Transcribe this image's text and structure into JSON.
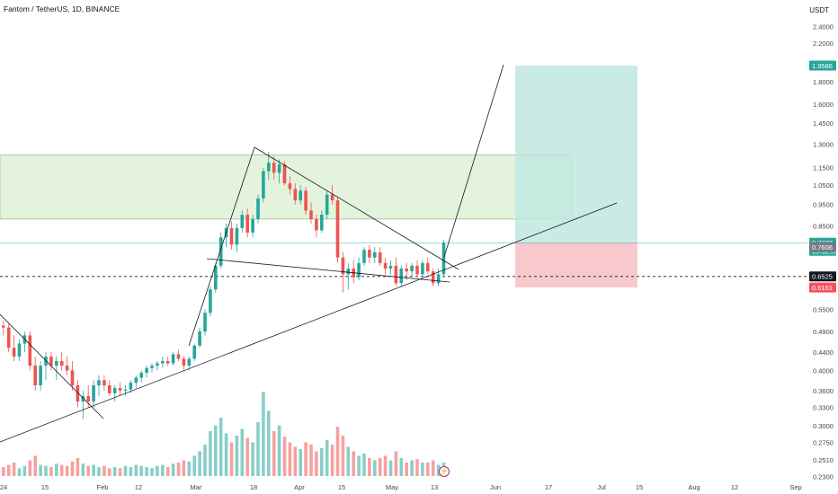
{
  "header": {
    "symbol_line": "Fantom / TetherUS, 1D, BINANCE",
    "currency": "USDT"
  },
  "colors": {
    "bull": "#26a69a",
    "bear": "#ef5350",
    "zone_fill": "#e3f3dc",
    "target_fill": "#bfe7df",
    "stop_fill": "#f8c9cc"
  },
  "chart_data": {
    "type": "candlestick",
    "log_scale": true,
    "price_axis_labels": [
      "2.4000",
      "2.2000",
      "1.8000",
      "1.6000",
      "1.4500",
      "1.3000",
      "1.1500",
      "1.0500",
      "0.9500",
      "0.8500",
      "0.5500",
      "0.4900",
      "0.4400",
      "0.4000",
      "0.3600",
      "0.3300",
      "0.3000",
      "0.2750",
      "0.2510",
      "0.2300"
    ],
    "price_axis_values": [
      2.4,
      2.2,
      1.8,
      1.6,
      1.45,
      1.3,
      1.15,
      1.05,
      0.95,
      0.85,
      0.55,
      0.49,
      0.44,
      0.4,
      0.36,
      0.33,
      0.3,
      0.275,
      0.251,
      0.23
    ],
    "time_axis_labels": [
      "24",
      "15",
      "Feb",
      "12",
      "Mar",
      "18",
      "Apr",
      "15",
      "May",
      "13",
      "Jun",
      "17",
      "Jul",
      "15",
      "Aug",
      "12",
      "Sep"
    ],
    "badges": [
      {
        "label": "1.9586",
        "value": 1.9586,
        "color": "#26a69a"
      },
      {
        "label": "0.7777",
        "sublabel": "19:52:59",
        "value": 0.7777,
        "color": "#26a69a"
      },
      {
        "label": "0.7606",
        "value": 0.7606,
        "color": "#787b86"
      },
      {
        "label": "0.6525",
        "value": 0.6525,
        "color": "#131722"
      },
      {
        "label": "0.6161",
        "value": 0.6161,
        "color": "#f7525f"
      }
    ],
    "current_price": 0.7777,
    "entry_price": 0.6525,
    "target_price": 1.9586,
    "stop_price": 0.6161,
    "resistance_zone": [
      0.88,
      1.23
    ],
    "candles": [
      [
        0.505,
        0.52,
        0.48,
        0.5
      ],
      [
        0.5,
        0.51,
        0.44,
        0.45
      ],
      [
        0.45,
        0.48,
        0.42,
        0.43
      ],
      [
        0.43,
        0.47,
        0.42,
        0.46
      ],
      [
        0.46,
        0.49,
        0.44,
        0.48
      ],
      [
        0.48,
        0.49,
        0.4,
        0.41
      ],
      [
        0.41,
        0.43,
        0.36,
        0.37
      ],
      [
        0.37,
        0.42,
        0.36,
        0.41
      ],
      [
        0.41,
        0.44,
        0.38,
        0.43
      ],
      [
        0.43,
        0.44,
        0.4,
        0.41
      ],
      [
        0.41,
        0.43,
        0.38,
        0.42
      ],
      [
        0.42,
        0.44,
        0.4,
        0.41
      ],
      [
        0.41,
        0.43,
        0.39,
        0.4
      ],
      [
        0.4,
        0.42,
        0.36,
        0.37
      ],
      [
        0.37,
        0.38,
        0.33,
        0.34
      ],
      [
        0.34,
        0.36,
        0.31,
        0.35
      ],
      [
        0.35,
        0.37,
        0.33,
        0.34
      ],
      [
        0.34,
        0.38,
        0.33,
        0.37
      ],
      [
        0.37,
        0.39,
        0.35,
        0.38
      ],
      [
        0.38,
        0.39,
        0.36,
        0.37
      ],
      [
        0.37,
        0.38,
        0.35,
        0.355
      ],
      [
        0.355,
        0.37,
        0.34,
        0.365
      ],
      [
        0.365,
        0.375,
        0.35,
        0.36
      ],
      [
        0.36,
        0.37,
        0.35,
        0.362
      ],
      [
        0.362,
        0.38,
        0.355,
        0.375
      ],
      [
        0.375,
        0.39,
        0.365,
        0.385
      ],
      [
        0.385,
        0.4,
        0.375,
        0.395
      ],
      [
        0.395,
        0.41,
        0.385,
        0.405
      ],
      [
        0.405,
        0.415,
        0.395,
        0.41
      ],
      [
        0.41,
        0.42,
        0.4,
        0.415
      ],
      [
        0.415,
        0.43,
        0.405,
        0.42
      ],
      [
        0.42,
        0.43,
        0.41,
        0.415
      ],
      [
        0.415,
        0.44,
        0.41,
        0.435
      ],
      [
        0.435,
        0.445,
        0.42,
        0.425
      ],
      [
        0.425,
        0.43,
        0.4,
        0.41
      ],
      [
        0.41,
        0.43,
        0.4,
        0.425
      ],
      [
        0.425,
        0.46,
        0.42,
        0.455
      ],
      [
        0.455,
        0.5,
        0.45,
        0.49
      ],
      [
        0.49,
        0.55,
        0.48,
        0.54
      ],
      [
        0.54,
        0.62,
        0.53,
        0.61
      ],
      [
        0.61,
        0.7,
        0.6,
        0.69
      ],
      [
        0.69,
        0.82,
        0.68,
        0.8
      ],
      [
        0.8,
        0.86,
        0.76,
        0.84
      ],
      [
        0.84,
        0.87,
        0.75,
        0.77
      ],
      [
        0.77,
        0.86,
        0.74,
        0.84
      ],
      [
        0.84,
        0.92,
        0.82,
        0.9
      ],
      [
        0.9,
        0.93,
        0.8,
        0.82
      ],
      [
        0.82,
        0.9,
        0.8,
        0.88
      ],
      [
        0.88,
        1.0,
        0.86,
        0.98
      ],
      [
        0.98,
        1.15,
        0.96,
        1.13
      ],
      [
        1.13,
        1.25,
        1.08,
        1.18
      ],
      [
        1.18,
        1.22,
        1.08,
        1.12
      ],
      [
        1.12,
        1.2,
        1.06,
        1.17
      ],
      [
        1.17,
        1.19,
        1.05,
        1.06
      ],
      [
        1.06,
        1.1,
        1.0,
        1.03
      ],
      [
        1.03,
        1.06,
        0.95,
        0.97
      ],
      [
        0.97,
        1.05,
        0.95,
        1.02
      ],
      [
        1.02,
        1.04,
        0.9,
        0.92
      ],
      [
        0.92,
        0.96,
        0.86,
        0.88
      ],
      [
        0.88,
        0.9,
        0.8,
        0.83
      ],
      [
        0.83,
        0.92,
        0.82,
        0.9
      ],
      [
        0.9,
        1.02,
        0.88,
        1.0
      ],
      [
        1.0,
        1.05,
        0.95,
        0.97
      ],
      [
        0.97,
        0.99,
        0.7,
        0.72
      ],
      [
        0.72,
        0.74,
        0.6,
        0.66
      ],
      [
        0.66,
        0.7,
        0.61,
        0.68
      ],
      [
        0.68,
        0.71,
        0.63,
        0.65
      ],
      [
        0.65,
        0.72,
        0.64,
        0.7
      ],
      [
        0.7,
        0.76,
        0.69,
        0.75
      ],
      [
        0.75,
        0.77,
        0.7,
        0.72
      ],
      [
        0.72,
        0.76,
        0.7,
        0.74
      ],
      [
        0.74,
        0.76,
        0.69,
        0.7
      ],
      [
        0.7,
        0.72,
        0.66,
        0.68
      ],
      [
        0.68,
        0.71,
        0.66,
        0.69
      ],
      [
        0.69,
        0.72,
        0.62,
        0.63
      ],
      [
        0.63,
        0.69,
        0.62,
        0.68
      ],
      [
        0.68,
        0.7,
        0.64,
        0.67
      ],
      [
        0.67,
        0.7,
        0.65,
        0.69
      ],
      [
        0.69,
        0.71,
        0.65,
        0.66
      ],
      [
        0.66,
        0.71,
        0.65,
        0.7
      ],
      [
        0.7,
        0.72,
        0.66,
        0.67
      ],
      [
        0.67,
        0.68,
        0.62,
        0.63
      ],
      [
        0.63,
        0.68,
        0.62,
        0.66
      ],
      [
        0.66,
        0.79,
        0.65,
        0.7777
      ]
    ],
    "volumes": [
      8,
      10,
      12,
      7,
      9,
      14,
      18,
      10,
      9,
      8,
      11,
      10,
      9,
      13,
      16,
      11,
      9,
      10,
      8,
      9,
      7,
      8,
      7,
      9,
      8,
      10,
      9,
      8,
      7,
      9,
      10,
      8,
      11,
      12,
      14,
      13,
      18,
      22,
      28,
      40,
      45,
      52,
      38,
      30,
      36,
      42,
      34,
      30,
      48,
      75,
      58,
      40,
      45,
      35,
      30,
      26,
      24,
      30,
      28,
      22,
      25,
      32,
      28,
      44,
      36,
      26,
      22,
      18,
      20,
      16,
      14,
      16,
      18,
      14,
      22,
      16,
      12,
      14,
      15,
      12,
      12,
      14,
      10,
      12
    ]
  }
}
